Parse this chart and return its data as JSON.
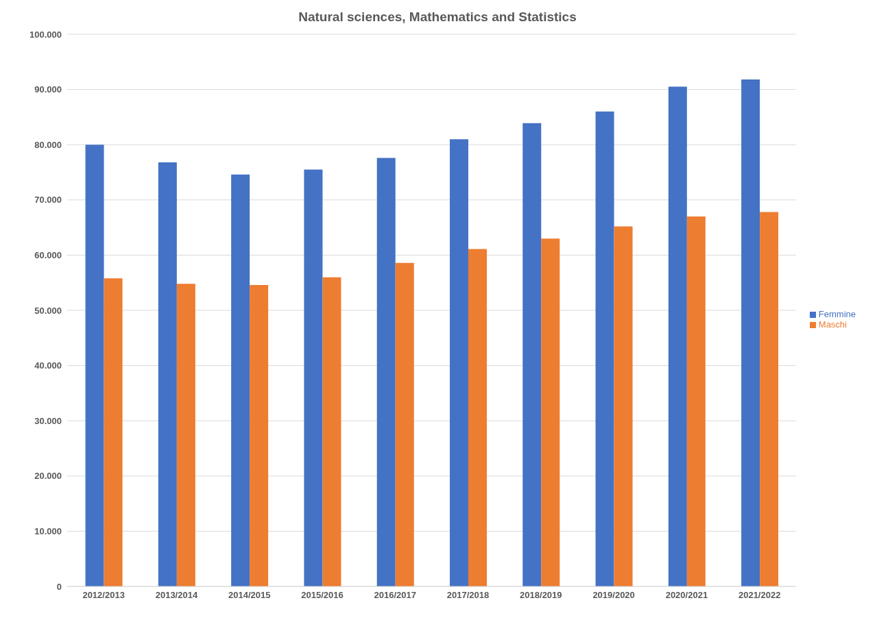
{
  "chart_data": {
    "type": "bar",
    "title": "Natural sciences, Mathematics and Statistics",
    "categories": [
      "2012/2013",
      "2013/2014",
      "2014/2015",
      "2015/2016",
      "2016/2017",
      "2017/2018",
      "2018/2019",
      "2019/2020",
      "2020/2021",
      "2021/2022"
    ],
    "series": [
      {
        "name": "Femmine",
        "color": "#4472c4",
        "values": [
          80000,
          76800,
          74600,
          75500,
          77600,
          81000,
          83900,
          86000,
          90500,
          91800
        ]
      },
      {
        "name": "Maschi",
        "color": "#ed7d31",
        "values": [
          55800,
          54800,
          54600,
          56000,
          58600,
          61100,
          63000,
          65200,
          67000,
          67800
        ]
      }
    ],
    "ylim": [
      0,
      100000
    ],
    "yticks": [
      {
        "value": 0,
        "label": "0"
      },
      {
        "value": 10000,
        "label": "10.000"
      },
      {
        "value": 20000,
        "label": "20.000"
      },
      {
        "value": 30000,
        "label": "30.000"
      },
      {
        "value": 40000,
        "label": "40.000"
      },
      {
        "value": 50000,
        "label": "50.000"
      },
      {
        "value": 60000,
        "label": "60.000"
      },
      {
        "value": 70000,
        "label": "70.000"
      },
      {
        "value": 80000,
        "label": "80.000"
      },
      {
        "value": 90000,
        "label": "90.000"
      },
      {
        "value": 100000,
        "label": "100.000"
      }
    ],
    "grid": "y",
    "legend": "right"
  }
}
